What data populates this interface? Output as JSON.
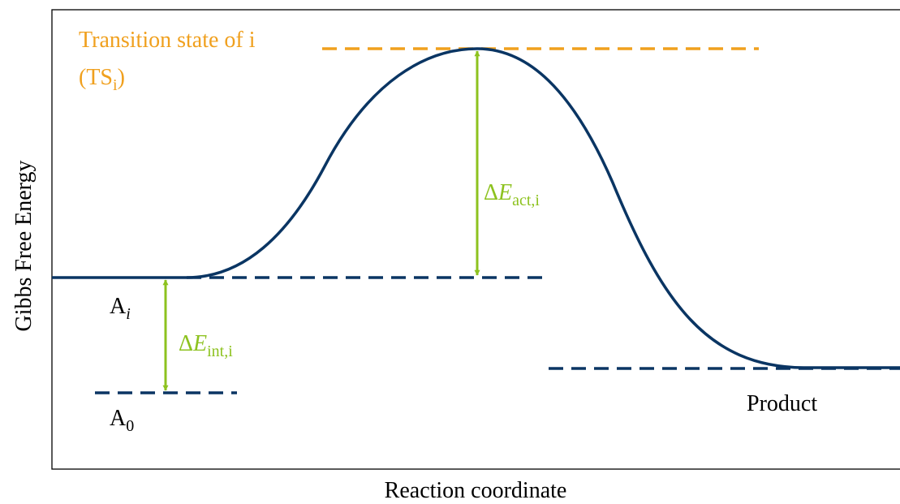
{
  "diagram": {
    "axes": {
      "y_label": "Gibbs Free Energy",
      "x_label": "Reaction coordinate"
    },
    "transition_state": {
      "line1": "Transition state of i",
      "open": "(TS",
      "sub": "i",
      "close": ")"
    },
    "activation": {
      "delta": "Δ",
      "symbol": "E",
      "sub": "act,i"
    },
    "intermediate": {
      "delta": "Δ",
      "symbol": "E",
      "sub": "int,i"
    },
    "state_i": {
      "symbol": "A",
      "sub": "i"
    },
    "state_0": {
      "symbol": "A",
      "sub": "0"
    },
    "product": "Product"
  }
}
